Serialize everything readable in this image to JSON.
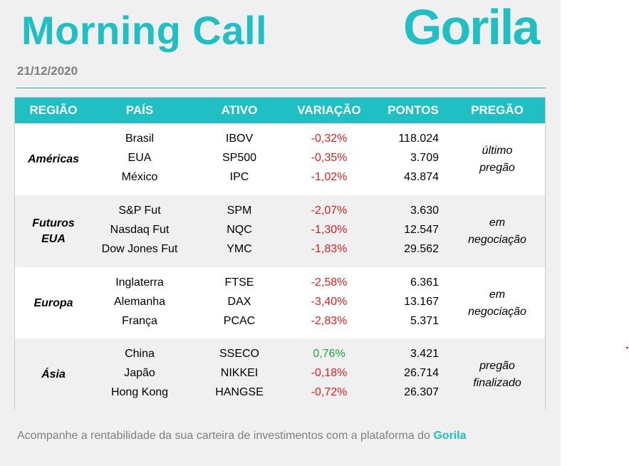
{
  "header": {
    "title": "Morning Call",
    "logo_text": "Gorila",
    "date": "21/12/2020"
  },
  "colors": {
    "brand": "#20bfc3",
    "negative": "#e0201b",
    "positive": "#1aa53d",
    "muted_text": "#7f7f7f"
  },
  "table": {
    "headers": {
      "regiao": "REGIÃO",
      "pais": "PAÍS",
      "ativo": "ATIVO",
      "variacao": "VARIAÇÃO",
      "pontos": "PONTOS",
      "pregao": "PREGÃO"
    },
    "groups": [
      {
        "region": [
          "Américas"
        ],
        "status": [
          "último",
          "pregão"
        ],
        "rows": [
          {
            "pais": "Brasil",
            "ativo": "IBOV",
            "variacao": "-0,32%",
            "pontos": "118.024",
            "trend": "neg"
          },
          {
            "pais": "EUA",
            "ativo": "SP500",
            "variacao": "-0,35%",
            "pontos": "3.709",
            "trend": "neg"
          },
          {
            "pais": "México",
            "ativo": "IPC",
            "variacao": "-1,02%",
            "pontos": "43.874",
            "trend": "neg"
          }
        ]
      },
      {
        "region": [
          "Futuros",
          "EUA"
        ],
        "status": [
          "em",
          "negociação"
        ],
        "rows": [
          {
            "pais": "S&P Fut",
            "ativo": "SPM",
            "variacao": "-2,07%",
            "pontos": "3.630",
            "trend": "neg"
          },
          {
            "pais": "Nasdaq Fut",
            "ativo": "NQC",
            "variacao": "-1,30%",
            "pontos": "12.547",
            "trend": "neg"
          },
          {
            "pais": "Dow Jones Fut",
            "ativo": "YMC",
            "variacao": "-1,83%",
            "pontos": "29.562",
            "trend": "neg"
          }
        ]
      },
      {
        "region": [
          "Europa"
        ],
        "status": [
          "em",
          "negociação"
        ],
        "rows": [
          {
            "pais": "Inglaterra",
            "ativo": "FTSE",
            "variacao": "-2,58%",
            "pontos": "6.361",
            "trend": "neg"
          },
          {
            "pais": "Alemanha",
            "ativo": "DAX",
            "variacao": "-3,40%",
            "pontos": "13.167",
            "trend": "neg"
          },
          {
            "pais": "França",
            "ativo": "PCAC",
            "variacao": "-2,83%",
            "pontos": "5.371",
            "trend": "neg"
          }
        ]
      },
      {
        "region": [
          "Ásia"
        ],
        "status": [
          "pregão",
          "finalizado"
        ],
        "rows": [
          {
            "pais": "China",
            "ativo": "SSECO",
            "variacao": "0,76%",
            "pontos": "3.421",
            "trend": "pos"
          },
          {
            "pais": "Japão",
            "ativo": "NIKKEI",
            "variacao": "-0,18%",
            "pontos": "26.714",
            "trend": "neg"
          },
          {
            "pais": "Hong Kong",
            "ativo": "HANGSE",
            "variacao": "-0,72%",
            "pontos": "26.307",
            "trend": "neg"
          }
        ]
      }
    ]
  },
  "footer": {
    "text": "Acompanhe a rentabilidade da sua carteira de investimentos com a plataforma do ",
    "brand": "Gorila"
  }
}
